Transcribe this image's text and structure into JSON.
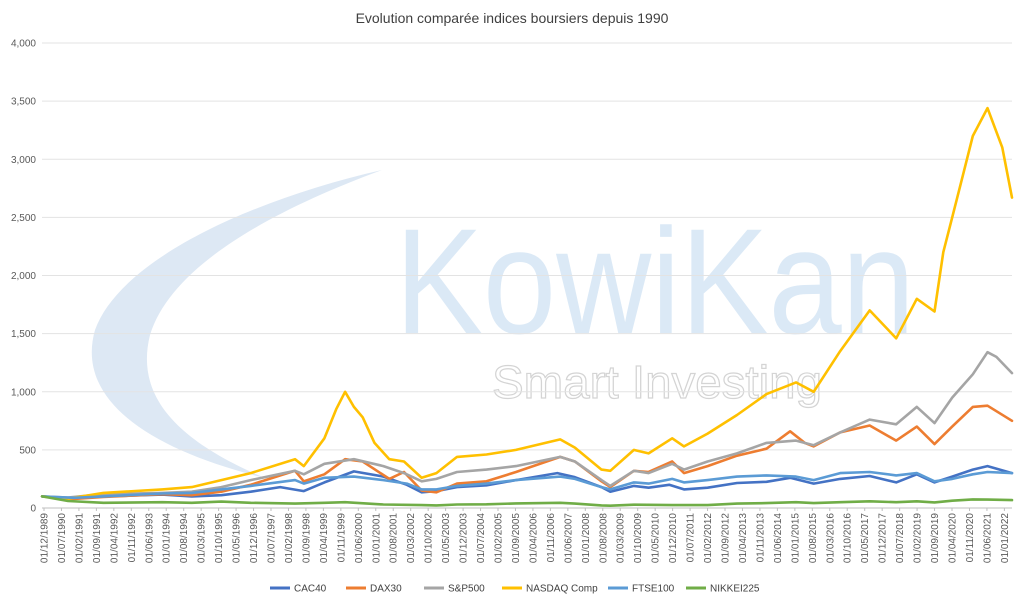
{
  "chart_data": {
    "type": "line",
    "title": "Evolution comparée indices boursiers depuis 1990",
    "xlabel": "",
    "ylabel": "",
    "ylim": [
      0,
      4000
    ],
    "yticks": [
      "0",
      "500",
      "1,000",
      "1,500",
      "2,000",
      "2,500",
      "3,000",
      "3,500",
      "4,000"
    ],
    "grid": true,
    "legend": "bottom",
    "watermark": {
      "brand": "KowiKan",
      "tagline": "Smart Investing"
    },
    "xlabels": [
      "01/12/1989",
      "01/07/1990",
      "01/02/1991",
      "01/09/1991",
      "01/04/1992",
      "01/11/1992",
      "01/06/1993",
      "01/01/1994",
      "01/08/1994",
      "01/03/1995",
      "01/10/1995",
      "01/05/1996",
      "01/12/1996",
      "01/07/1997",
      "01/02/1998",
      "01/09/1998",
      "01/04/1999",
      "01/11/1999",
      "01/06/2000",
      "01/01/2001",
      "01/08/2001",
      "01/03/2002",
      "01/10/2002",
      "01/05/2003",
      "01/12/2003",
      "01/07/2004",
      "01/02/2005",
      "01/09/2005",
      "01/04/2006",
      "01/11/2006",
      "01/06/2007",
      "01/01/2008",
      "01/08/2008",
      "01/03/2009",
      "01/10/2009",
      "01/05/2010",
      "01/12/2010",
      "01/07/2011",
      "01/02/2012",
      "01/09/2012",
      "01/04/2013",
      "01/11/2013",
      "01/06/2014",
      "01/01/2015",
      "01/08/2015",
      "01/03/2016",
      "01/10/2016",
      "01/05/2017",
      "01/12/2017",
      "01/07/2018",
      "01/02/2019",
      "01/09/2019",
      "01/04/2020",
      "01/11/2020",
      "01/06/2021",
      "01/01/2022"
    ],
    "x_start": 1989.917,
    "x_end": 2022.83,
    "series": [
      {
        "name": "CAC40",
        "color": "#4472c4",
        "points": [
          [
            1989.92,
            100
          ],
          [
            1991,
            82
          ],
          [
            1992,
            100
          ],
          [
            1994,
            115
          ],
          [
            1995,
            100
          ],
          [
            1996,
            110
          ],
          [
            1997,
            140
          ],
          [
            1998,
            180
          ],
          [
            1998.8,
            145
          ],
          [
            1999.5,
            220
          ],
          [
            2000.5,
            315
          ],
          [
            2001.5,
            270
          ],
          [
            2002.3,
            200
          ],
          [
            2002.8,
            135
          ],
          [
            2003.3,
            145
          ],
          [
            2004,
            180
          ],
          [
            2005,
            195
          ],
          [
            2006,
            240
          ],
          [
            2007.4,
            300
          ],
          [
            2008,
            265
          ],
          [
            2008.9,
            180
          ],
          [
            2009.2,
            140
          ],
          [
            2010,
            190
          ],
          [
            2010.5,
            175
          ],
          [
            2011.2,
            200
          ],
          [
            2011.7,
            160
          ],
          [
            2012.5,
            175
          ],
          [
            2013.5,
            215
          ],
          [
            2014.5,
            225
          ],
          [
            2015.3,
            260
          ],
          [
            2016.1,
            210
          ],
          [
            2017,
            250
          ],
          [
            2018,
            275
          ],
          [
            2018.9,
            220
          ],
          [
            2019.6,
            290
          ],
          [
            2020.2,
            220
          ],
          [
            2020.8,
            270
          ],
          [
            2021.5,
            330
          ],
          [
            2022.0,
            360
          ],
          [
            2022.83,
            300
          ]
        ]
      },
      {
        "name": "DAX30",
        "color": "#ed7d31",
        "points": [
          [
            1989.92,
            100
          ],
          [
            1991,
            78
          ],
          [
            1992,
            95
          ],
          [
            1994,
            120
          ],
          [
            1995,
            110
          ],
          [
            1996,
            140
          ],
          [
            1997,
            200
          ],
          [
            1998.5,
            320
          ],
          [
            1998.8,
            230
          ],
          [
            1999.5,
            290
          ],
          [
            2000.2,
            420
          ],
          [
            2000.8,
            400
          ],
          [
            2001.7,
            250
          ],
          [
            2002.2,
            310
          ],
          [
            2002.8,
            150
          ],
          [
            2003.3,
            135
          ],
          [
            2004,
            210
          ],
          [
            2005,
            230
          ],
          [
            2006,
            310
          ],
          [
            2007.5,
            440
          ],
          [
            2008,
            400
          ],
          [
            2008.9,
            230
          ],
          [
            2009.2,
            180
          ],
          [
            2010,
            320
          ],
          [
            2010.5,
            310
          ],
          [
            2011.3,
            400
          ],
          [
            2011.7,
            300
          ],
          [
            2012.5,
            360
          ],
          [
            2013.5,
            450
          ],
          [
            2014.5,
            510
          ],
          [
            2015.3,
            660
          ],
          [
            2015.8,
            560
          ],
          [
            2016.1,
            530
          ],
          [
            2017,
            650
          ],
          [
            2018,
            710
          ],
          [
            2018.9,
            580
          ],
          [
            2019.6,
            700
          ],
          [
            2020.2,
            550
          ],
          [
            2020.8,
            700
          ],
          [
            2021.5,
            870
          ],
          [
            2022.0,
            880
          ],
          [
            2022.83,
            750
          ]
        ]
      },
      {
        "name": "S&P500",
        "color": "#a5a5a5",
        "points": [
          [
            1989.92,
            100
          ],
          [
            1990.8,
            90
          ],
          [
            1992,
            120
          ],
          [
            1994,
            130
          ],
          [
            1995,
            140
          ],
          [
            1996,
            180
          ],
          [
            1997,
            240
          ],
          [
            1998.5,
            320
          ],
          [
            1998.8,
            290
          ],
          [
            1999.5,
            380
          ],
          [
            2000.5,
            420
          ],
          [
            2001.5,
            360
          ],
          [
            2002.2,
            300
          ],
          [
            2002.8,
            230
          ],
          [
            2003.3,
            250
          ],
          [
            2004,
            310
          ],
          [
            2005,
            330
          ],
          [
            2006,
            360
          ],
          [
            2007.5,
            440
          ],
          [
            2008,
            400
          ],
          [
            2008.9,
            240
          ],
          [
            2009.2,
            190
          ],
          [
            2010,
            320
          ],
          [
            2010.5,
            300
          ],
          [
            2011.3,
            380
          ],
          [
            2011.7,
            330
          ],
          [
            2012.5,
            400
          ],
          [
            2013.5,
            470
          ],
          [
            2014.5,
            560
          ],
          [
            2015.5,
            580
          ],
          [
            2016.1,
            540
          ],
          [
            2017,
            650
          ],
          [
            2018,
            760
          ],
          [
            2018.9,
            720
          ],
          [
            2019.6,
            870
          ],
          [
            2020.2,
            730
          ],
          [
            2020.8,
            950
          ],
          [
            2021.5,
            1150
          ],
          [
            2022.0,
            1340
          ],
          [
            2022.3,
            1300
          ],
          [
            2022.83,
            1160
          ]
        ]
      },
      {
        "name": "NASDAQ Comp",
        "color": "#ffc000",
        "points": [
          [
            1989.92,
            100
          ],
          [
            1990.8,
            80
          ],
          [
            1992,
            130
          ],
          [
            1994,
            160
          ],
          [
            1995,
            180
          ],
          [
            1996,
            240
          ],
          [
            1997,
            300
          ],
          [
            1998.5,
            420
          ],
          [
            1998.8,
            360
          ],
          [
            1999.5,
            600
          ],
          [
            1999.9,
            850
          ],
          [
            2000.2,
            1000
          ],
          [
            2000.5,
            870
          ],
          [
            2000.8,
            780
          ],
          [
            2001.2,
            560
          ],
          [
            2001.7,
            420
          ],
          [
            2002.2,
            400
          ],
          [
            2002.8,
            260
          ],
          [
            2003.3,
            300
          ],
          [
            2004,
            440
          ],
          [
            2005,
            460
          ],
          [
            2006,
            500
          ],
          [
            2007.5,
            590
          ],
          [
            2008,
            520
          ],
          [
            2008.9,
            330
          ],
          [
            2009.2,
            320
          ],
          [
            2010,
            500
          ],
          [
            2010.5,
            470
          ],
          [
            2011.3,
            600
          ],
          [
            2011.7,
            530
          ],
          [
            2012.5,
            640
          ],
          [
            2013.5,
            800
          ],
          [
            2014.5,
            980
          ],
          [
            2015.5,
            1080
          ],
          [
            2016.1,
            1000
          ],
          [
            2017,
            1350
          ],
          [
            2018,
            1700
          ],
          [
            2018.9,
            1460
          ],
          [
            2019.6,
            1800
          ],
          [
            2020.2,
            1690
          ],
          [
            2020.5,
            2200
          ],
          [
            2020.8,
            2500
          ],
          [
            2021.2,
            2900
          ],
          [
            2021.5,
            3200
          ],
          [
            2022.0,
            3440
          ],
          [
            2022.5,
            3100
          ],
          [
            2022.83,
            2670
          ]
        ]
      },
      {
        "name": "FTSE100",
        "color": "#5b9bd5",
        "points": [
          [
            1989.92,
            100
          ],
          [
            1991,
            88
          ],
          [
            1992,
            100
          ],
          [
            1994,
            125
          ],
          [
            1995,
            130
          ],
          [
            1996,
            160
          ],
          [
            1997,
            190
          ],
          [
            1998.5,
            240
          ],
          [
            1998.8,
            210
          ],
          [
            1999.5,
            260
          ],
          [
            2000.5,
            270
          ],
          [
            2001.5,
            240
          ],
          [
            2002.3,
            210
          ],
          [
            2002.8,
            160
          ],
          [
            2003.3,
            160
          ],
          [
            2004,
            190
          ],
          [
            2005,
            210
          ],
          [
            2006,
            240
          ],
          [
            2007.5,
            270
          ],
          [
            2008,
            250
          ],
          [
            2008.9,
            180
          ],
          [
            2009.2,
            160
          ],
          [
            2010,
            220
          ],
          [
            2010.5,
            210
          ],
          [
            2011.3,
            250
          ],
          [
            2011.7,
            220
          ],
          [
            2012.5,
            240
          ],
          [
            2013.5,
            270
          ],
          [
            2014.5,
            280
          ],
          [
            2015.5,
            270
          ],
          [
            2016.1,
            240
          ],
          [
            2017,
            300
          ],
          [
            2018,
            310
          ],
          [
            2018.9,
            280
          ],
          [
            2019.6,
            300
          ],
          [
            2020.2,
            230
          ],
          [
            2020.8,
            250
          ],
          [
            2021.5,
            290
          ],
          [
            2022.0,
            310
          ],
          [
            2022.83,
            300
          ]
        ]
      },
      {
        "name": "NIKKEI225",
        "color": "#70ad47",
        "points": [
          [
            1989.92,
            100
          ],
          [
            1990.8,
            60
          ],
          [
            1992,
            45
          ],
          [
            1994,
            50
          ],
          [
            1995,
            45
          ],
          [
            1996,
            55
          ],
          [
            1997,
            45
          ],
          [
            1998.5,
            38
          ],
          [
            1999.5,
            45
          ],
          [
            2000.2,
            50
          ],
          [
            2001.5,
            30
          ],
          [
            2002.8,
            25
          ],
          [
            2003.3,
            22
          ],
          [
            2004,
            30
          ],
          [
            2005,
            32
          ],
          [
            2006,
            40
          ],
          [
            2007.5,
            45
          ],
          [
            2008,
            38
          ],
          [
            2008.9,
            22
          ],
          [
            2009.2,
            20
          ],
          [
            2010,
            28
          ],
          [
            2011.3,
            25
          ],
          [
            2012.5,
            25
          ],
          [
            2013.5,
            38
          ],
          [
            2014.5,
            42
          ],
          [
            2015.5,
            50
          ],
          [
            2016.1,
            42
          ],
          [
            2017,
            50
          ],
          [
            2018,
            58
          ],
          [
            2018.9,
            50
          ],
          [
            2019.6,
            58
          ],
          [
            2020.2,
            48
          ],
          [
            2020.8,
            63
          ],
          [
            2021.5,
            74
          ],
          [
            2022.0,
            72
          ],
          [
            2022.83,
            68
          ]
        ]
      }
    ]
  }
}
